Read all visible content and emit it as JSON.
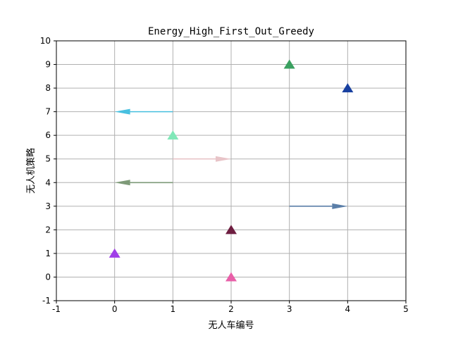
{
  "chart_data": {
    "type": "quiver",
    "title": "Energy_High_First_Out_Greedy",
    "xlabel": "无人车编号",
    "ylabel": "无人机策略",
    "xlim": [
      -1,
      5
    ],
    "ylim": [
      -1,
      10
    ],
    "xticks": [
      "-1",
      "0",
      "1",
      "2",
      "3",
      "4",
      "5"
    ],
    "yticks": [
      "-1",
      "0",
      "1",
      "2",
      "3",
      "4",
      "5",
      "6",
      "7",
      "8",
      "9",
      "10"
    ],
    "grid": true,
    "arrows": [
      {
        "x": 0,
        "y": 1,
        "dx": 0,
        "dy": 0,
        "direction": "up",
        "color": "#a03ee8"
      },
      {
        "x": 2,
        "y": 0,
        "dx": 0,
        "dy": 0,
        "direction": "up",
        "color": "#e85fa8"
      },
      {
        "x": 2,
        "y": 2,
        "dx": 0,
        "dy": 0,
        "direction": "up",
        "color": "#6e1e40"
      },
      {
        "x": 3,
        "y": 3,
        "dx": 1,
        "dy": 0,
        "direction": "right",
        "color": "#5a7ea8"
      },
      {
        "x": 1,
        "y": 4,
        "dx": -1,
        "dy": 0,
        "direction": "left",
        "color": "#7e9a78"
      },
      {
        "x": 1,
        "y": 5,
        "dx": 1,
        "dy": 0,
        "direction": "right",
        "color": "#e8c4c8"
      },
      {
        "x": 1,
        "y": 6,
        "dx": 0,
        "dy": 0,
        "direction": "up",
        "color": "#80e8b8"
      },
      {
        "x": 1,
        "y": 7,
        "dx": -1,
        "dy": 0,
        "direction": "left",
        "color": "#48c0e0"
      },
      {
        "x": 4,
        "y": 8,
        "dx": 0,
        "dy": 0,
        "direction": "up",
        "color": "#1840a0"
      },
      {
        "x": 3,
        "y": 9,
        "dx": 0,
        "dy": 0,
        "direction": "up",
        "color": "#3aa060"
      }
    ]
  }
}
